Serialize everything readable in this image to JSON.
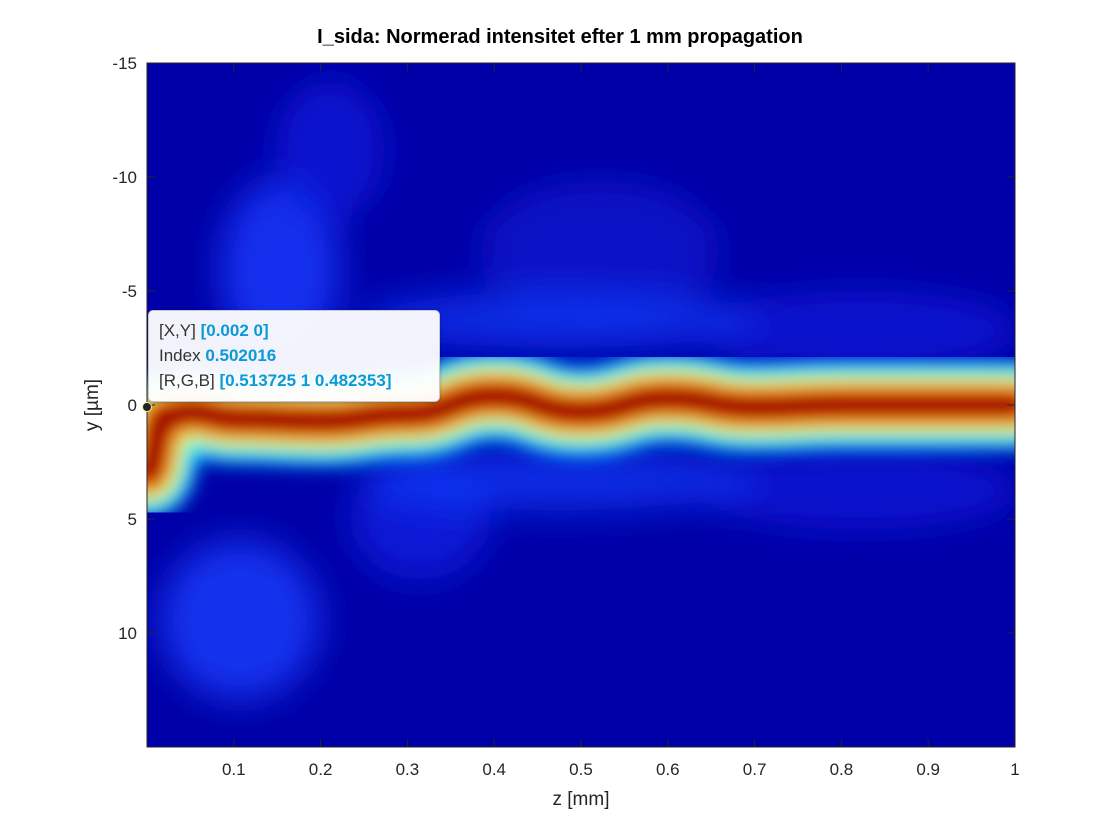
{
  "chart_data": {
    "type": "heatmap",
    "title": "I_sida: Normerad intensitet efter 1 mm propagation",
    "xlabel": "z [mm]",
    "ylabel": "y [µm]",
    "xlim": [
      0,
      1
    ],
    "ylim": [
      -15,
      15
    ],
    "y_direction": "reversed",
    "colormap": "jet",
    "x_ticks": [
      "0.1",
      "0.2",
      "0.3",
      "0.4",
      "0.5",
      "0.6",
      "0.7",
      "0.8",
      "0.9",
      "1"
    ],
    "y_ticks": [
      "-15",
      "-10",
      "-5",
      "0",
      "5",
      "10"
    ],
    "y_tick_values": [
      -15,
      -10,
      -5,
      0,
      5,
      10
    ],
    "beam_center_profile": {
      "z": [
        0,
        0.02,
        0.05,
        0.1,
        0.2,
        0.3,
        0.4,
        0.5,
        0.6,
        0.7,
        0.8,
        0.9,
        1.0
      ],
      "y": [
        3.0,
        0.5,
        0.3,
        0.6,
        0.7,
        0.4,
        -0.4,
        0.3,
        -0.3,
        0.1,
        0.0,
        0.0,
        0.0
      ]
    },
    "beam_width_um": 1.2
  },
  "datatip": {
    "xy_label": "[X,Y]",
    "xy_value": "[0.002 0]",
    "index_label": "Index",
    "index_value": "0.502016",
    "rgb_label": "[R,G,B]",
    "rgb_value": "[0.513725 1 0.482353]"
  },
  "colors": {
    "background_low": "#0000a8",
    "beam_peak": "#800000",
    "datatip_value": "#0a9ad8"
  }
}
